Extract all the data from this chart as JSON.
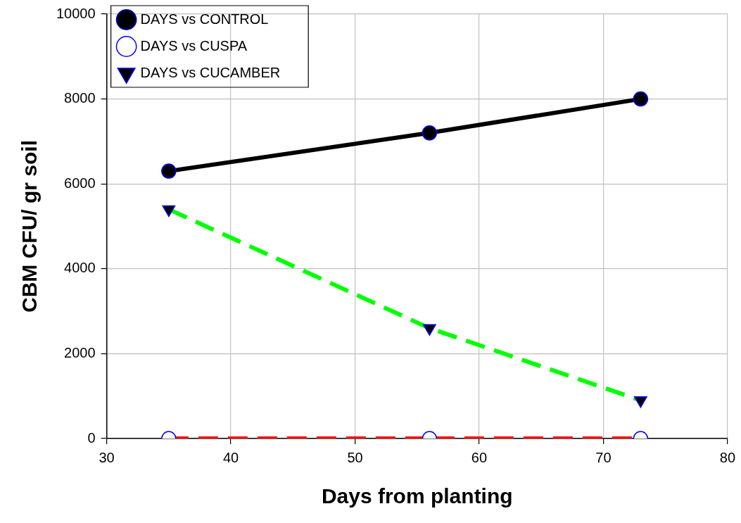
{
  "chart_data": {
    "type": "line",
    "xlabel": "Days from planting",
    "ylabel": "CBM CFU/ gr soil",
    "x": [
      35,
      56,
      73
    ],
    "series": [
      {
        "name": "DAYS vs CONTROL",
        "color": "#000000",
        "values": [
          6300,
          7200,
          8000
        ],
        "marker": "circle",
        "line_style": "solid"
      },
      {
        "name": "DAYS vs CUSPA",
        "color": "#ff0000",
        "values": [
          0,
          0,
          0
        ],
        "marker": "circle",
        "line_style": "dashed"
      },
      {
        "name": "DAYS vs CUCAMBER",
        "color": "#00ff00",
        "values": [
          5400,
          2600,
          900
        ],
        "marker": "triangle",
        "line_style": "dashed"
      }
    ],
    "xlim": [
      30,
      80
    ],
    "xticks": [
      30,
      40,
      50,
      60,
      70,
      80
    ],
    "ylim": [
      0,
      10000
    ],
    "yticks": [
      0,
      2000,
      4000,
      6000,
      8000,
      10000
    ],
    "grid": true,
    "legend": "top left"
  }
}
